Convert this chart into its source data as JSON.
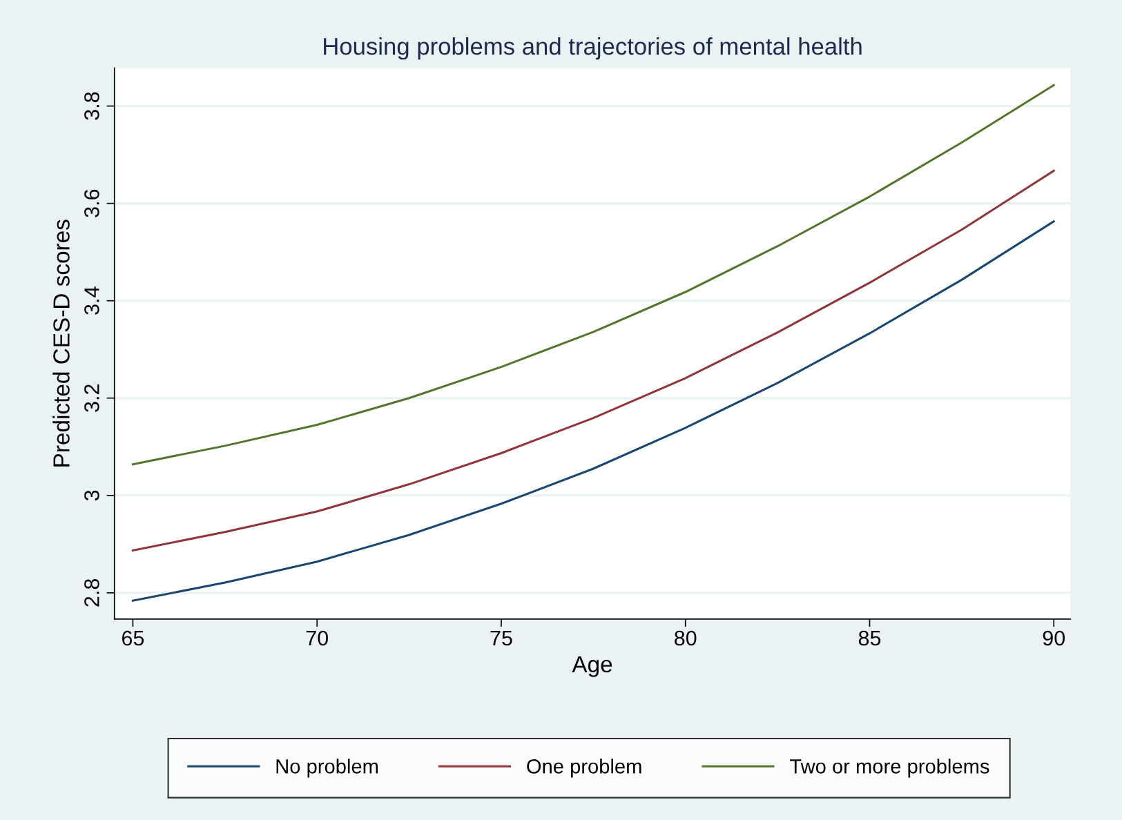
{
  "chart_data": {
    "type": "line",
    "title": "Housing problems and trajectories of mental health",
    "xlabel": "Age",
    "ylabel": "Predicted CES-D scores",
    "x": [
      65,
      67.5,
      70,
      72.5,
      75,
      77.5,
      80,
      82.5,
      85,
      87.5,
      90
    ],
    "series": [
      {
        "name": "No problem",
        "color": "#1a476f",
        "values": [
          2.784,
          2.821,
          2.864,
          2.919,
          2.983,
          3.055,
          3.139,
          3.231,
          3.333,
          3.443,
          3.563
        ]
      },
      {
        "name": "One problem",
        "color": "#90353b",
        "values": [
          2.887,
          2.925,
          2.967,
          3.023,
          3.087,
          3.159,
          3.241,
          3.335,
          3.437,
          3.546,
          3.667
        ]
      },
      {
        "name": "Two or more problems",
        "color": "#55752f",
        "values": [
          3.064,
          3.102,
          3.145,
          3.2,
          3.264,
          3.336,
          3.418,
          3.512,
          3.614,
          3.725,
          3.843
        ]
      }
    ],
    "xlim": [
      64.5,
      90.45
    ],
    "xticks": [
      65,
      70,
      75,
      80,
      85,
      90
    ],
    "ylim": [
      2.746,
      3.878
    ],
    "yticks": [
      2.8,
      3,
      3.2,
      3.4,
      3.6,
      3.8
    ],
    "grid": "y",
    "legend": "bottom",
    "marker": "none",
    "line_style": "solid"
  }
}
